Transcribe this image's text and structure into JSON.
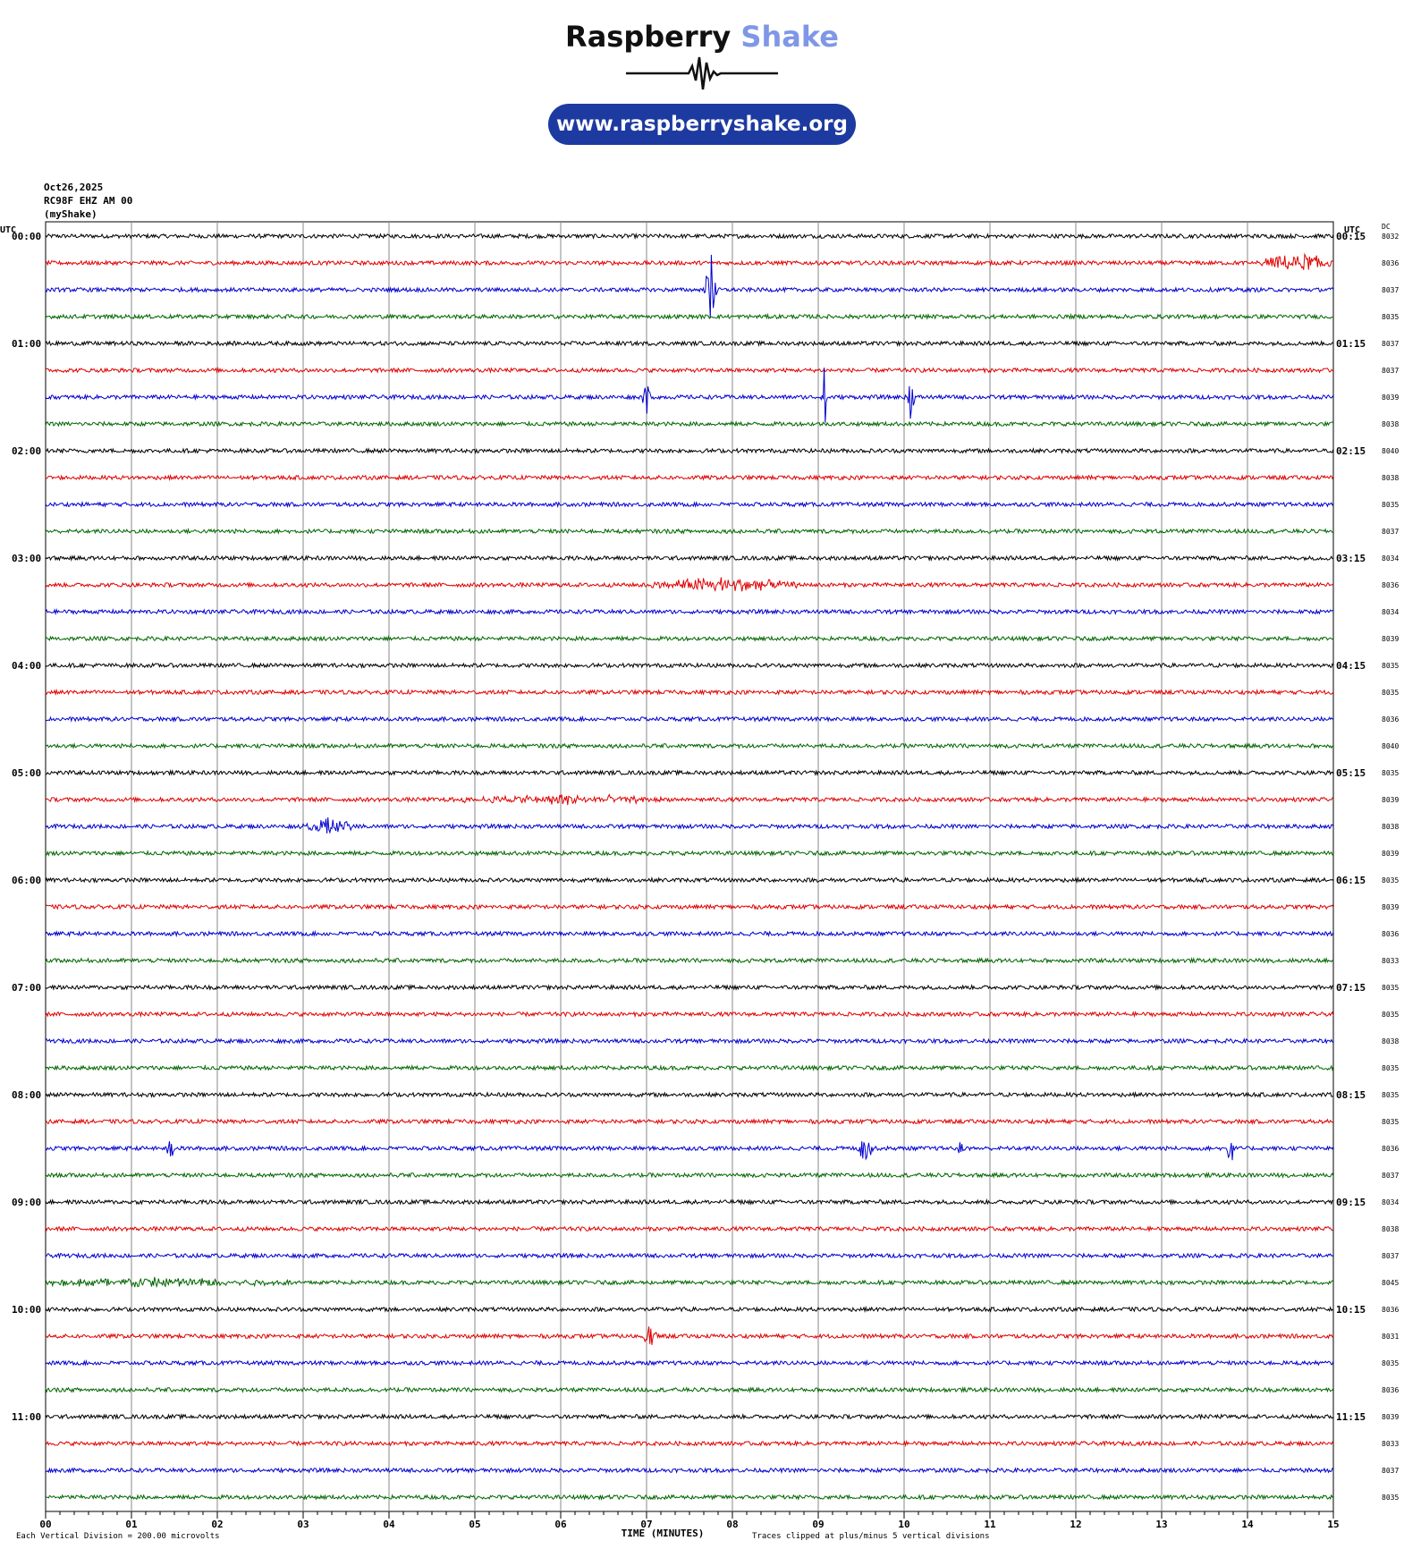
{
  "logo": {
    "brand_left": "Raspberry",
    "brand_right": "Shake",
    "url": "www.raspberryshake.org",
    "brand_color": "#1d3aa0",
    "accent_color": "#7f97e6"
  },
  "header": {
    "date": "Oct26,2025",
    "station": "RC98F EHZ AM 00",
    "source": "(myShake)"
  },
  "footer": {
    "scale_note": "Each Vertical Division =  200.00 microvolts",
    "xaxis_label": "TIME (MINUTES)",
    "clip_note": "Traces clipped at plus/minus 5 vertical divisions"
  },
  "chart_data": {
    "type": "line",
    "title": "",
    "xlabel": "TIME (MINUTES)",
    "ylabel": "",
    "xlim": [
      0,
      15
    ],
    "x_ticks": [
      "00",
      "01",
      "02",
      "03",
      "04",
      "05",
      "06",
      "07",
      "08",
      "09",
      "10",
      "11",
      "12",
      "13",
      "14",
      "15"
    ],
    "left_axis_title": "UTC",
    "right_axis_title": "UTC",
    "dc_header": "DC",
    "left_hour_labels": [
      "00:00",
      "01:00",
      "02:00",
      "03:00",
      "04:00",
      "05:00",
      "06:00",
      "07:00",
      "08:00",
      "09:00",
      "10:00",
      "11:00"
    ],
    "right_hour_labels": [
      "00:15",
      "01:15",
      "02:15",
      "03:15",
      "04:15",
      "05:15",
      "06:15",
      "07:15",
      "08:15",
      "09:15",
      "10:15",
      "11:15"
    ],
    "trace_colors": [
      "#000000",
      "#e00000",
      "#0000d0",
      "#006600"
    ],
    "traces_per_hour": 4,
    "trace_minutes": 15,
    "dc_offsets": [
      "8032",
      "8036",
      "8037",
      "8035",
      "8037",
      "8037",
      "8039",
      "8038",
      "8040",
      "8038",
      "8035",
      "8037",
      "8034",
      "8036",
      "8034",
      "8039",
      "8035",
      "8035",
      "8036",
      "8040",
      "8035",
      "8039",
      "8038",
      "8039",
      "8035",
      "8039",
      "8036",
      "8033",
      "8035",
      "8035",
      "8038",
      "8035",
      "8035",
      "8035",
      "8036",
      "8037",
      "8034",
      "8038",
      "8037",
      "8045",
      "8036",
      "8031",
      "8035",
      "8036",
      "8039",
      "8033",
      "8037",
      "8035"
    ],
    "amplitude_unit": "vertical divisions",
    "clip_divisions": 5,
    "events": [
      {
        "trace": 2,
        "minute": 7.75,
        "amplitude": 5,
        "width": 0.08
      },
      {
        "trace": 1,
        "minute": 14.6,
        "amplitude": 1.2,
        "width": 0.6
      },
      {
        "trace": 6,
        "minute": 7.0,
        "amplitude": 3.5,
        "width": 0.05
      },
      {
        "trace": 6,
        "minute": 9.08,
        "amplitude": 5,
        "width": 0.05
      },
      {
        "trace": 6,
        "minute": 10.08,
        "amplitude": 3.5,
        "width": 0.05
      },
      {
        "trace": 13,
        "minute": 7.9,
        "amplitude": 1.0,
        "width": 1.0
      },
      {
        "trace": 21,
        "minute": 6.0,
        "amplitude": 0.6,
        "width": 1.5
      },
      {
        "trace": 22,
        "minute": 3.3,
        "amplitude": 1.0,
        "width": 0.4
      },
      {
        "trace": 34,
        "minute": 1.45,
        "amplitude": 2.0,
        "width": 0.05
      },
      {
        "trace": 34,
        "minute": 9.55,
        "amplitude": 2.0,
        "width": 0.1
      },
      {
        "trace": 34,
        "minute": 10.65,
        "amplitude": 1.0,
        "width": 0.05
      },
      {
        "trace": 34,
        "minute": 13.8,
        "amplitude": 2.5,
        "width": 0.05
      },
      {
        "trace": 39,
        "minute": 1.3,
        "amplitude": 0.6,
        "width": 2.0
      },
      {
        "trace": 41,
        "minute": 7.05,
        "amplitude": 1.5,
        "width": 0.1
      }
    ]
  }
}
